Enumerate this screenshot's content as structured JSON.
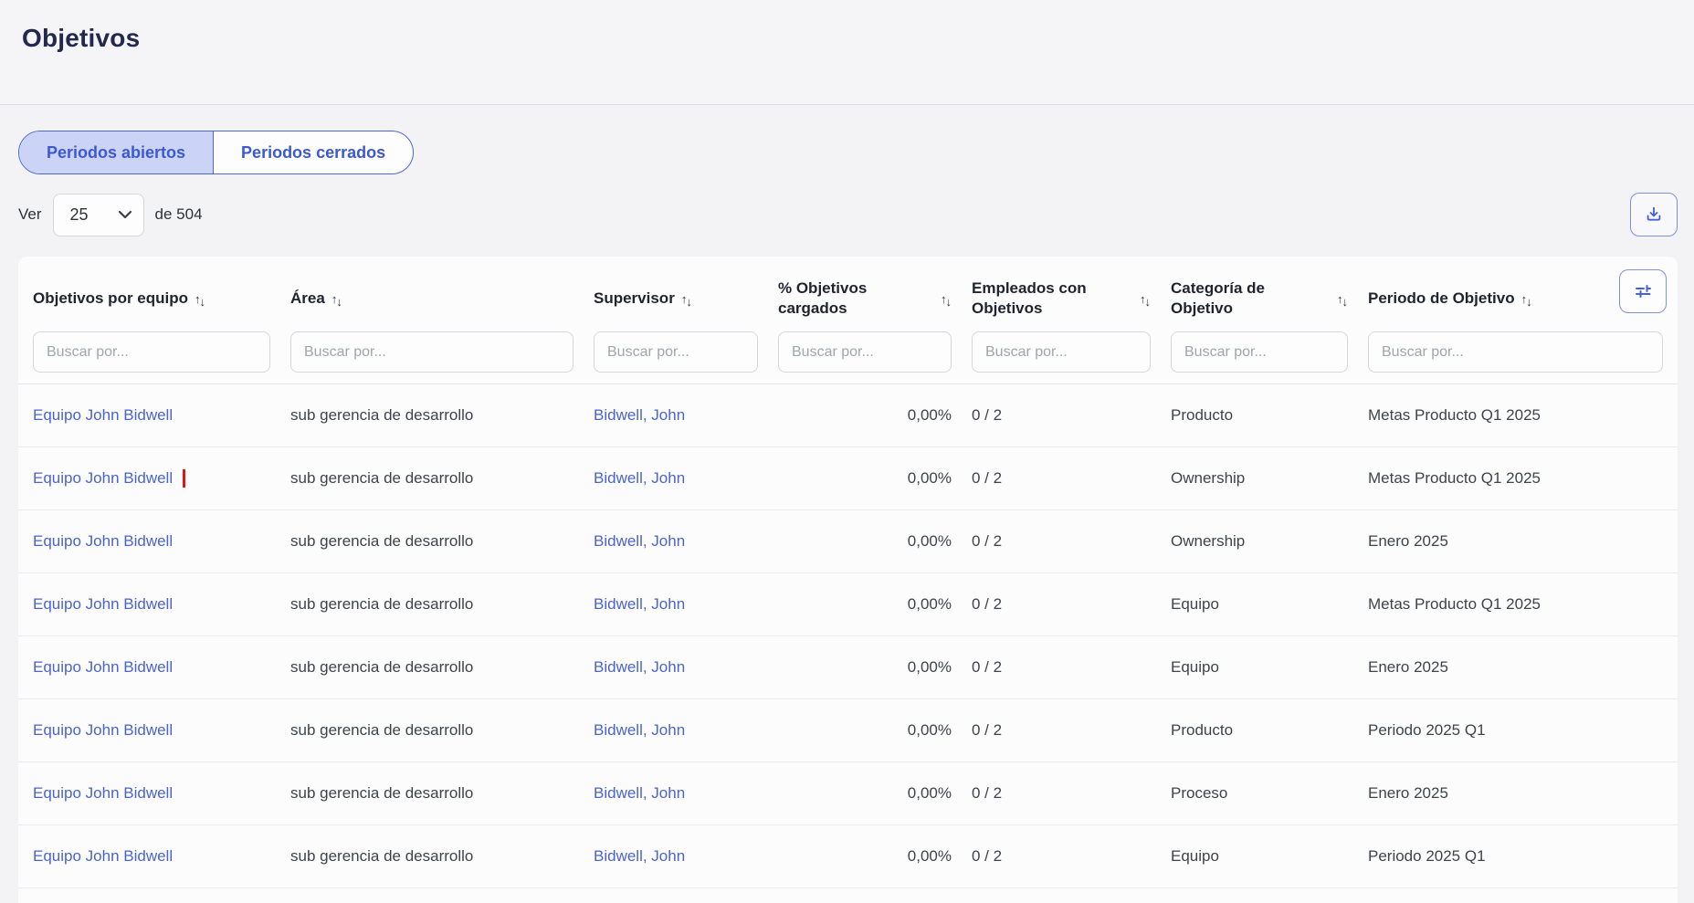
{
  "page": {
    "title": "Objetivos"
  },
  "tabs": [
    {
      "label": "Periodos abiertos",
      "active": true
    },
    {
      "label": "Periodos cerrados",
      "active": false
    }
  ],
  "pagination": {
    "ver_label": "Ver",
    "page_size": "25",
    "total_label": "de 504"
  },
  "icons": {
    "download": "download-icon",
    "filter": "adjustments-icon",
    "select_chevron": "chevron-down-icon",
    "sort": "sort-arrows-icon"
  },
  "table": {
    "search_placeholder": "Buscar por...",
    "columns": [
      {
        "label": "Objetivos por equipo",
        "sortable": true,
        "wrap": false
      },
      {
        "label": "Área",
        "sortable": true,
        "wrap": false
      },
      {
        "label": "Supervisor",
        "sortable": true,
        "wrap": false
      },
      {
        "label": "% Objetivos cargados",
        "sortable": true,
        "wrap": true
      },
      {
        "label": "Empleados con Objetivos",
        "sortable": true,
        "wrap": true
      },
      {
        "label": "Categoría de Objetivo",
        "sortable": true,
        "wrap": true
      },
      {
        "label": "Periodo de Objetivo",
        "sortable": true,
        "wrap": false
      }
    ],
    "rows": [
      {
        "equipo": "Equipo John Bidwell",
        "area": "sub gerencia de desarrollo",
        "supervisor": "Bidwell, John",
        "pct": "0,00%",
        "empleados": "0 / 2",
        "categoria": "Producto",
        "periodo": "Metas Producto Q1 2025",
        "highlighted": false
      },
      {
        "equipo": "Equipo John Bidwell",
        "area": "sub gerencia de desarrollo",
        "supervisor": "Bidwell, John",
        "pct": "0,00%",
        "empleados": "0 / 2",
        "categoria": "Ownership",
        "periodo": "Metas Producto Q1 2025",
        "highlighted": true
      },
      {
        "equipo": "Equipo John Bidwell",
        "area": "sub gerencia de desarrollo",
        "supervisor": "Bidwell, John",
        "pct": "0,00%",
        "empleados": "0 / 2",
        "categoria": "Ownership",
        "periodo": "Enero 2025",
        "highlighted": false
      },
      {
        "equipo": "Equipo John Bidwell",
        "area": "sub gerencia de desarrollo",
        "supervisor": "Bidwell, John",
        "pct": "0,00%",
        "empleados": "0 / 2",
        "categoria": "Equipo",
        "periodo": "Metas Producto Q1 2025",
        "highlighted": false
      },
      {
        "equipo": "Equipo John Bidwell",
        "area": "sub gerencia de desarrollo",
        "supervisor": "Bidwell, John",
        "pct": "0,00%",
        "empleados": "0 / 2",
        "categoria": "Equipo",
        "periodo": "Enero 2025",
        "highlighted": false
      },
      {
        "equipo": "Equipo John Bidwell",
        "area": "sub gerencia de desarrollo",
        "supervisor": "Bidwell, John",
        "pct": "0,00%",
        "empleados": "0 / 2",
        "categoria": "Producto",
        "periodo": "Periodo 2025 Q1",
        "highlighted": false
      },
      {
        "equipo": "Equipo John Bidwell",
        "area": "sub gerencia de desarrollo",
        "supervisor": "Bidwell, John",
        "pct": "0,00%",
        "empleados": "0 / 2",
        "categoria": "Proceso",
        "periodo": "Enero 2025",
        "highlighted": false
      },
      {
        "equipo": "Equipo John Bidwell",
        "area": "sub gerencia de desarrollo",
        "supervisor": "Bidwell, John",
        "pct": "0,00%",
        "empleados": "0 / 2",
        "categoria": "Equipo",
        "periodo": "Periodo 2025 Q1",
        "highlighted": false
      }
    ]
  },
  "colors": {
    "accent_blue": "#4560d8",
    "link_blue": "#4a64cd",
    "tab_border": "#4d66d4",
    "active_tab_bg": "#cbd4f6",
    "title_color": "#23284f",
    "highlight_red": "#e41414"
  }
}
